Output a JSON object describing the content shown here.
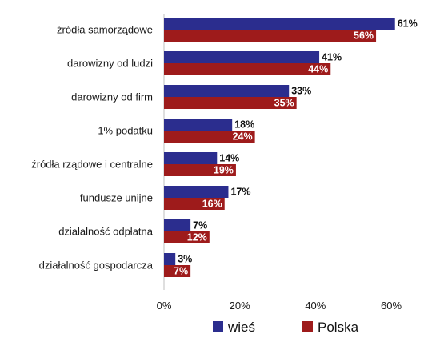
{
  "chart_data": {
    "type": "bar",
    "orientation": "horizontal",
    "categories": [
      "źródła samorządowe",
      "darowizny  od ludzi",
      "darowizny od firm",
      "1% podatku",
      "źródła rządowe i centralne",
      "fundusze unijne",
      "działalność odpłatna",
      "działalność gospodarcza"
    ],
    "series": [
      {
        "name": "wieś",
        "color": "#2b2d8e",
        "values": [
          61,
          41,
          33,
          18,
          14,
          17,
          7,
          3
        ],
        "labels": [
          "61%",
          "41%",
          "33%",
          "18%",
          "14%",
          "17%",
          "7%",
          "3%"
        ]
      },
      {
        "name": "Polska",
        "color": "#9e1b1b",
        "values": [
          56,
          44,
          35,
          24,
          19,
          16,
          12,
          7
        ],
        "labels": [
          "56%",
          "44%",
          "35%",
          "24%",
          "19%",
          "16%",
          "12%",
          "7%"
        ]
      }
    ],
    "xlim": [
      0,
      60
    ],
    "xticks": [
      0,
      20,
      40,
      60
    ],
    "xtick_labels": [
      "0%",
      "20%",
      "40%",
      "60%"
    ],
    "legend_position": "bottom",
    "grid": false
  }
}
